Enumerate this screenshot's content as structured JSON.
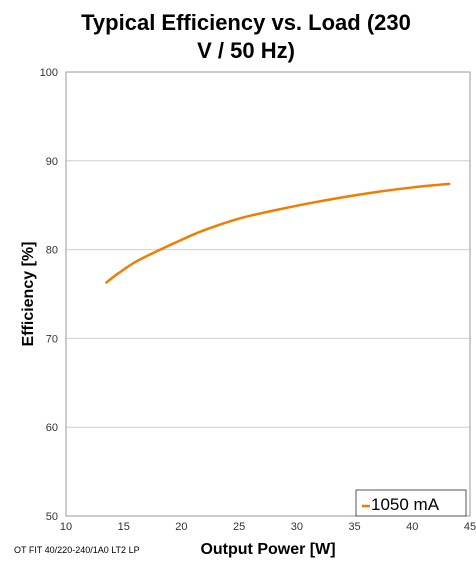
{
  "chart_data": {
    "type": "line",
    "title_line1": "Typical Efficiency vs. Load (230",
    "title_line2": "V / 50 Hz)",
    "xlabel": "Output Power [W]",
    "ylabel": "Efficiency [%]",
    "footnote": "OT FIT 40/220-240/1A0 LT2 LP",
    "xlim": [
      10,
      45
    ],
    "ylim": [
      50,
      100
    ],
    "x_ticks": [
      10,
      15,
      20,
      25,
      30,
      35,
      40,
      45
    ],
    "y_ticks": [
      50,
      60,
      70,
      80,
      90,
      100
    ],
    "grid": "horizontal",
    "legend_position": "bottom-right",
    "series": [
      {
        "name": "1050 mA",
        "color": "#f07d00",
        "x": [
          13.5,
          14.5,
          16,
          18,
          20,
          22,
          25,
          28,
          31,
          34,
          37,
          40,
          43.2
        ],
        "y": [
          76.3,
          77.3,
          78.6,
          79.9,
          81.1,
          82.2,
          83.5,
          84.4,
          85.2,
          85.9,
          86.5,
          87.0,
          87.4
        ]
      }
    ]
  }
}
